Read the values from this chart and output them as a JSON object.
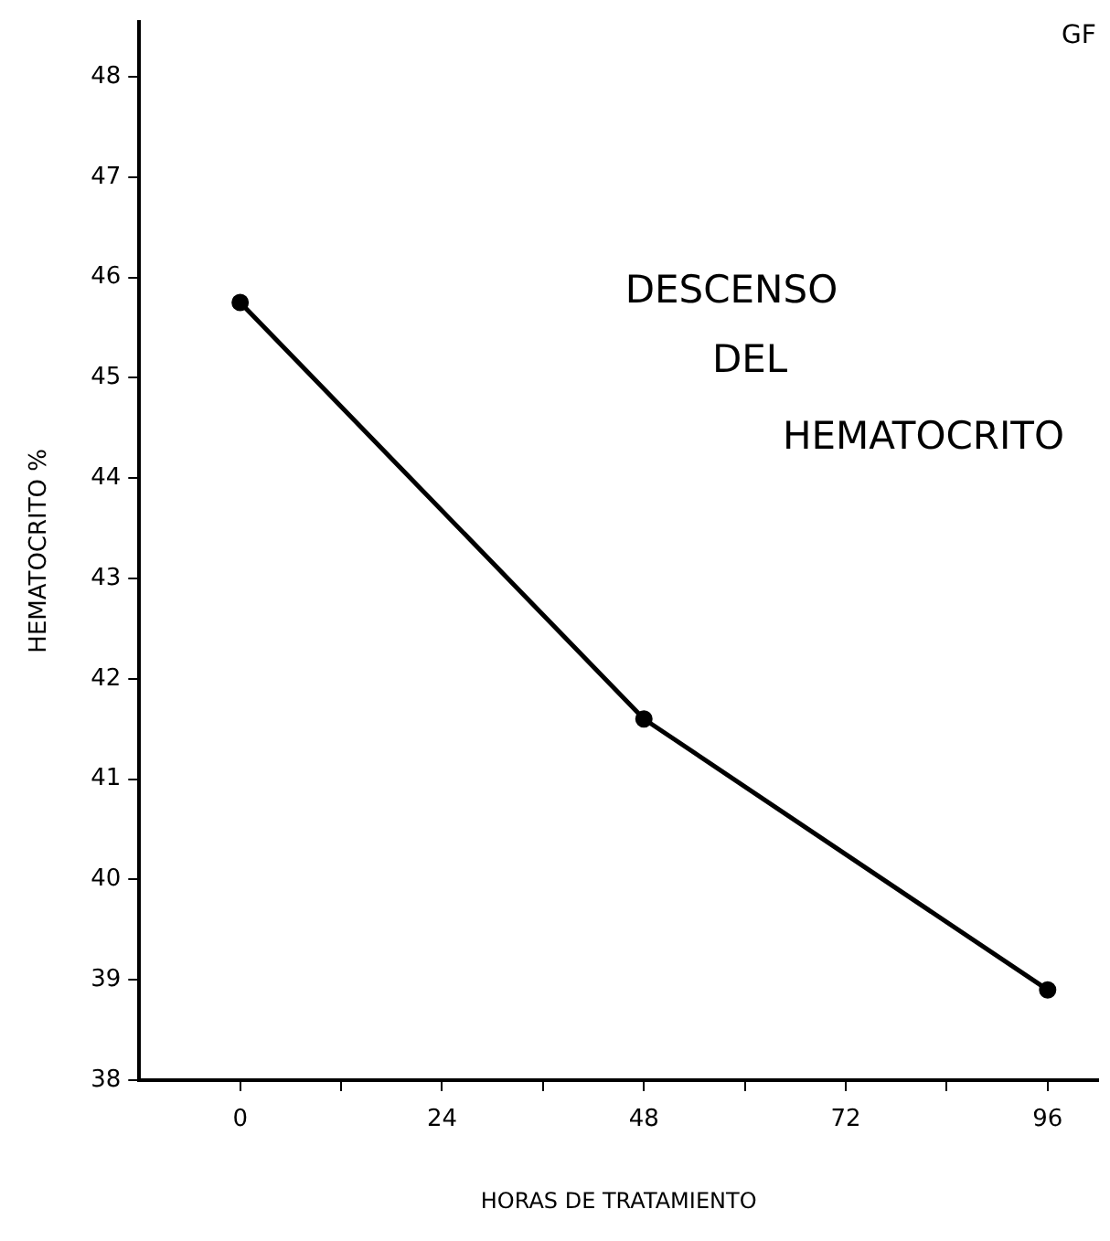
{
  "chart_data": {
    "type": "line",
    "xlabel": "HORAS DE TRATAMIENTO",
    "ylabel": "HEMATOCRITO %",
    "annotations": [
      "GF",
      "DESCENSO",
      "DEL",
      "HEMATOCRITO"
    ],
    "x": [
      0,
      48,
      96
    ],
    "series": [
      {
        "color": "#000000",
        "values": [
          45.75,
          41.6,
          38.9
        ]
      }
    ],
    "xlim": [
      -12,
      102
    ],
    "xticks": [
      0,
      {
        "value": 12,
        "label": null
      },
      24,
      {
        "value": 36,
        "label": null
      },
      48,
      {
        "value": 60,
        "label": null
      },
      72,
      {
        "value": 84,
        "label": null
      },
      96
    ],
    "ylim": [
      38,
      48.55
    ],
    "yticks": [
      38,
      39,
      40,
      41,
      42,
      43,
      44,
      45,
      46,
      47,
      48
    ],
    "grid": false,
    "legend": false,
    "marker": "circle",
    "line_style": "solid"
  }
}
